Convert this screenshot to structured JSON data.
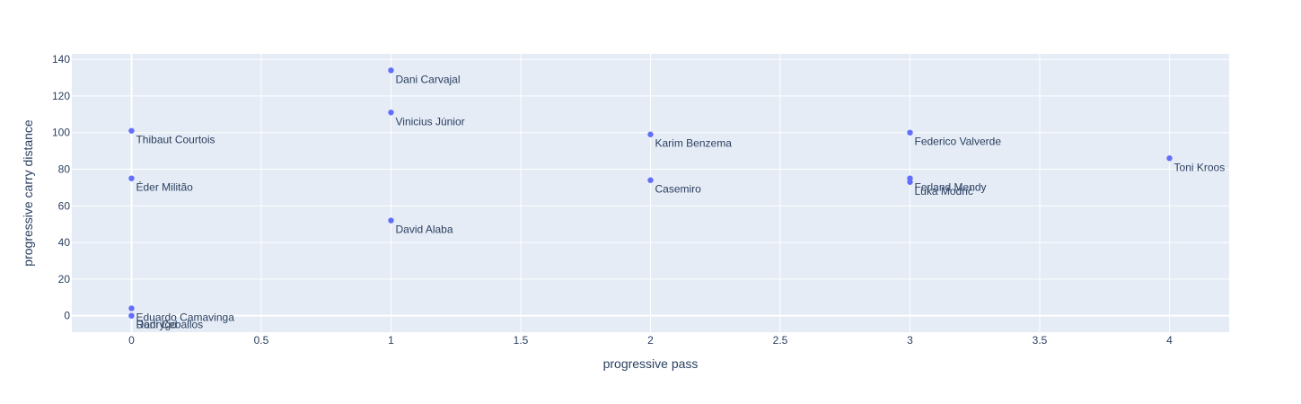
{
  "chart_data": {
    "type": "scatter",
    "title": "",
    "xlabel": "progressive pass",
    "ylabel": "progressive carry distance",
    "xlim": [
      -0.23,
      4.23
    ],
    "ylim": [
      -9,
      143
    ],
    "x_ticks": [
      0,
      0.5,
      1,
      1.5,
      2,
      2.5,
      3,
      3.5,
      4
    ],
    "x_tick_labels": [
      "0",
      "0.5",
      "1",
      "1.5",
      "2",
      "2.5",
      "3",
      "3.5",
      "4"
    ],
    "y_ticks": [
      0,
      20,
      40,
      60,
      80,
      100,
      120,
      140
    ],
    "y_tick_labels": [
      "0",
      "20",
      "40",
      "60",
      "80",
      "100",
      "120",
      "140"
    ],
    "grid": true,
    "legend": "none",
    "colors": {
      "marker": "#636efa",
      "plot_background": "#e5ecf6",
      "grid": "#ffffff",
      "text": "#2a3f5f"
    },
    "points": [
      {
        "label": "Dani Carvajal",
        "x": 1,
        "y": 134
      },
      {
        "label": "Vinicius Júnior",
        "x": 1,
        "y": 111
      },
      {
        "label": "Thibaut Courtois",
        "x": 0,
        "y": 101
      },
      {
        "label": "Karim Benzema",
        "x": 2,
        "y": 99
      },
      {
        "label": "Federico Valverde",
        "x": 3,
        "y": 100
      },
      {
        "label": "Toni Kroos",
        "x": 4,
        "y": 86
      },
      {
        "label": "Éder Militão",
        "x": 0,
        "y": 75
      },
      {
        "label": "Casemiro",
        "x": 2,
        "y": 74
      },
      {
        "label": "Ferland Mendy",
        "x": 3,
        "y": 75
      },
      {
        "label": "Luka Modrić",
        "x": 3,
        "y": 73
      },
      {
        "label": "David Alaba",
        "x": 1,
        "y": 52
      },
      {
        "label": "Eduardo Camavinga",
        "x": 0,
        "y": 4
      },
      {
        "label": "Dani Ceballos",
        "x": 0,
        "y": 0
      },
      {
        "label": "Rodrygo",
        "x": 0,
        "y": 0
      }
    ]
  }
}
